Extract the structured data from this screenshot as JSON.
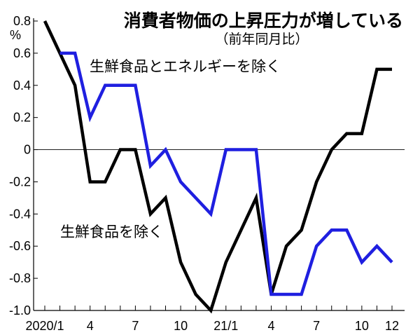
{
  "chart_data": {
    "type": "line",
    "title": "消費者物価の上昇圧力が増している",
    "subtitle": "（前年同月比）",
    "ylabel": "%",
    "ylim": [
      -1.0,
      0.8
    ],
    "yticks": [
      0.8,
      0.6,
      0.4,
      0.2,
      0,
      -0.2,
      -0.4,
      -0.6,
      -0.8,
      -1.0
    ],
    "ytick_labels": [
      "0.8",
      "0.6",
      "0.4",
      "0.2",
      "0",
      "-0.2",
      "-0.4",
      "-0.6",
      "-0.8",
      "-1.0"
    ],
    "x": [
      "2020/1",
      "2020/2",
      "2020/3",
      "2020/4",
      "2020/5",
      "2020/6",
      "2020/7",
      "2020/8",
      "2020/9",
      "2020/10",
      "2020/11",
      "2020/12",
      "21/1",
      "21/2",
      "21/3",
      "21/4",
      "21/5",
      "21/6",
      "21/7",
      "21/8",
      "21/9",
      "21/10",
      "21/11",
      "21/12"
    ],
    "xtick_labels": [
      {
        "label": "2020/1",
        "x": "2020/1"
      },
      {
        "label": "4",
        "x": "2020/4"
      },
      {
        "label": "7",
        "x": "2020/7"
      },
      {
        "label": "10",
        "x": "2020/10"
      },
      {
        "label": "21/1",
        "x": "21/1"
      },
      {
        "label": "4",
        "x": "21/4"
      },
      {
        "label": "7",
        "x": "21/7"
      },
      {
        "label": "10",
        "x": "21/10"
      },
      {
        "label": "12",
        "x": "21/12"
      }
    ],
    "zero_line": true,
    "series": [
      {
        "name": "生鮮食品を除く",
        "color": "#000000",
        "values": [
          0.8,
          0.6,
          0.4,
          -0.2,
          -0.2,
          0.0,
          0.0,
          -0.4,
          -0.3,
          -0.7,
          -0.9,
          -1.0,
          -0.7,
          -0.5,
          -0.3,
          -0.9,
          -0.6,
          -0.5,
          -0.2,
          0.0,
          0.1,
          0.1,
          0.5,
          0.5
        ]
      },
      {
        "name": "生鮮食品とエネルギーを除く",
        "color": "#1f1fe0",
        "values": [
          null,
          0.6,
          0.6,
          0.2,
          0.4,
          0.4,
          0.4,
          -0.1,
          0.0,
          -0.2,
          -0.3,
          -0.4,
          0.0,
          0.0,
          0.0,
          -0.9,
          -0.9,
          -0.9,
          -0.6,
          -0.5,
          -0.5,
          -0.7,
          -0.6,
          -0.7
        ]
      }
    ]
  }
}
